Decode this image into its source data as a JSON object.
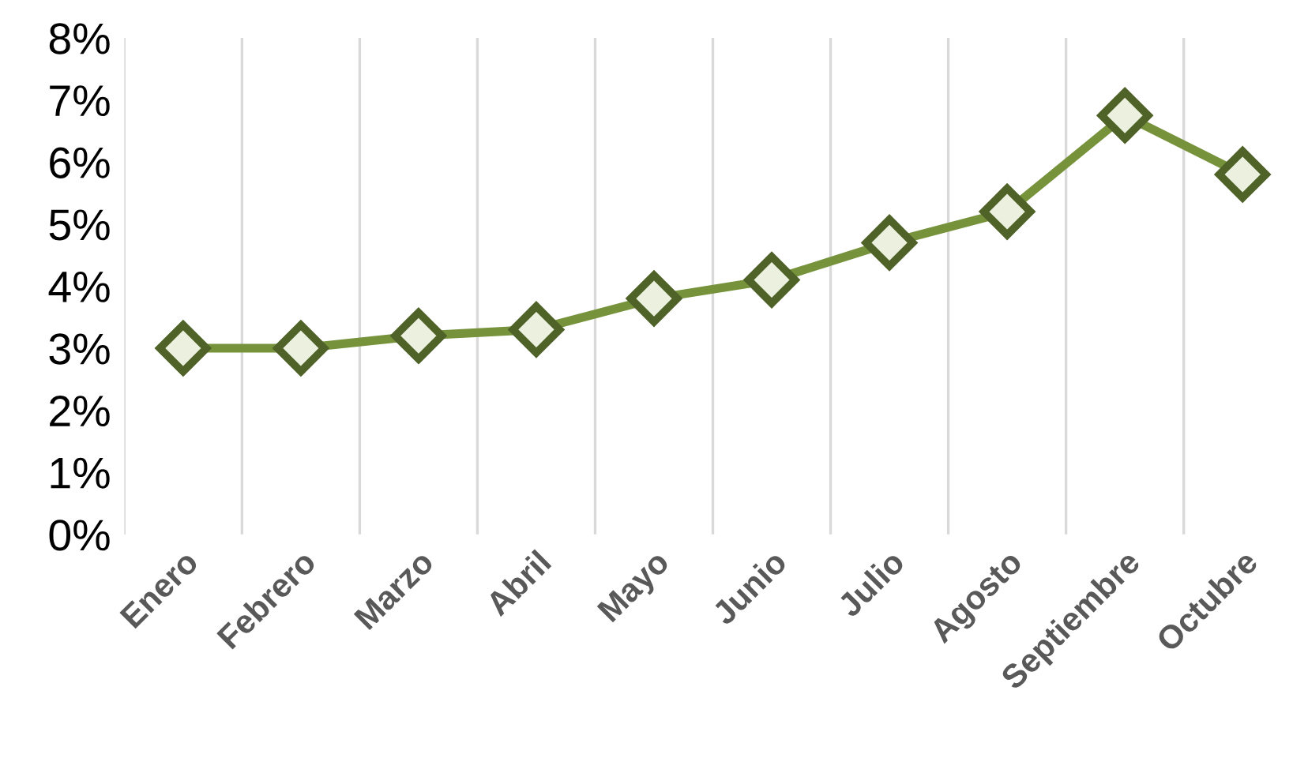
{
  "chart_data": {
    "type": "line",
    "categories": [
      "Enero",
      "Febrero",
      "Marzo",
      "Abril",
      "Mayo",
      "Junio",
      "Julio",
      "Agosto",
      "Septiembre",
      "Octubre"
    ],
    "series": [
      {
        "color": "#76933c",
        "values": [
          3.0,
          3.0,
          3.2,
          3.3,
          3.8,
          4.1,
          4.7,
          5.2,
          6.75,
          5.8
        ]
      }
    ],
    "ylim": [
      0,
      8
    ],
    "yticks": [
      {
        "value": 0,
        "label": "0%"
      },
      {
        "value": 1,
        "label": "1%"
      },
      {
        "value": 2,
        "label": "2%"
      },
      {
        "value": 3,
        "label": "3%"
      },
      {
        "value": 4,
        "label": "4%"
      },
      {
        "value": 5,
        "label": "5%"
      },
      {
        "value": 6,
        "label": "6%"
      },
      {
        "value": 7,
        "label": "7%"
      },
      {
        "value": 8,
        "label": "8%"
      }
    ],
    "grid": "x",
    "marker": "diamond",
    "line_style": "solid",
    "legend": false
  }
}
